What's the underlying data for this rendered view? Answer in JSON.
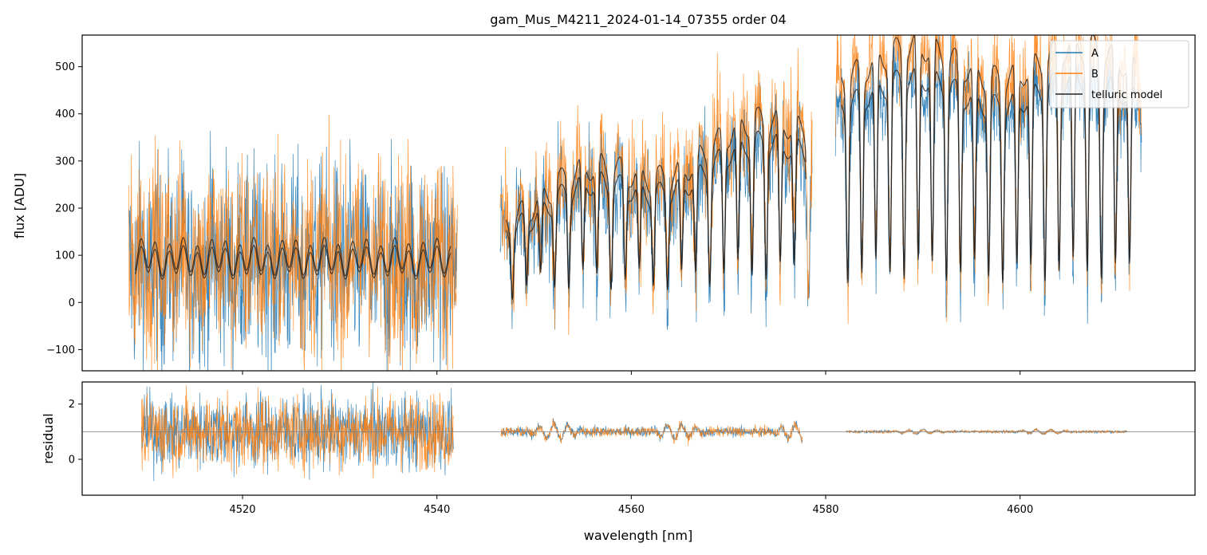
{
  "chart_data": {
    "type": "line",
    "title": "gam_Mus_M4211_2024-01-14_07355  order 04",
    "legend": {
      "placement": "top-right",
      "entries": [
        "A",
        "B",
        "telluric model"
      ]
    },
    "colors": {
      "A": "#1f77b4",
      "B": "#ff7f0e",
      "telluric model": "#222222",
      "unity_line": "#808080"
    },
    "xlabel": "wavelength [nm]",
    "xlim": [
      4503.5,
      4618
    ],
    "x_ticks": [
      {
        "value": 4520,
        "label": "4520"
      },
      {
        "value": 4540,
        "label": "4540"
      },
      {
        "value": 4560,
        "label": "4560"
      },
      {
        "value": 4580,
        "label": "4580"
      },
      {
        "value": 4600,
        "label": "4600"
      }
    ],
    "panels": [
      {
        "name": "flux",
        "ylabel": "flux [ADU]",
        "ylim": [
          -145,
          567
        ],
        "y_ticks": [
          {
            "value": -100,
            "label": "−100"
          },
          {
            "value": 0,
            "label": "0"
          },
          {
            "value": 100,
            "label": "100"
          },
          {
            "value": 200,
            "label": "200"
          },
          {
            "value": 300,
            "label": "300"
          },
          {
            "value": 400,
            "label": "400"
          },
          {
            "value": 500,
            "label": "500"
          }
        ],
        "segments": [
          {
            "x_range": [
              4508.3,
              4542.1
            ],
            "telluric_mean": 85,
            "telluric_amplitude": 28,
            "line_spacing_nm": 1.45,
            "noise_amplitude": 150
          },
          {
            "x_range": [
              4546.5,
              4578.6
            ],
            "telluric_mean_start": 130,
            "telluric_mean_end": 250,
            "depth": 0.8,
            "line_spacing_nm": 1.45,
            "noise_amplitude": 80
          },
          {
            "x_range": [
              4581.0,
              4612.5
            ],
            "telluric_mean": 330,
            "depth": 0.85,
            "line_spacing_nm": 1.45,
            "noise_amplitude": 70
          }
        ]
      },
      {
        "name": "residual",
        "ylabel": "residual",
        "ylim": [
          -1.3,
          2.8
        ],
        "y_ticks": [
          {
            "value": 0,
            "label": "0"
          },
          {
            "value": 2,
            "label": "2"
          }
        ],
        "reference_line": 1.0,
        "segments": [
          {
            "x_range": [
              4509.6,
              4541.7
            ],
            "scatter": 1.6
          },
          {
            "x_range": [
              4546.6,
              4577.6
            ],
            "scatter": 0.22
          },
          {
            "x_range": [
              4582.1,
              4611.0
            ],
            "scatter": 0.06
          }
        ]
      }
    ]
  }
}
